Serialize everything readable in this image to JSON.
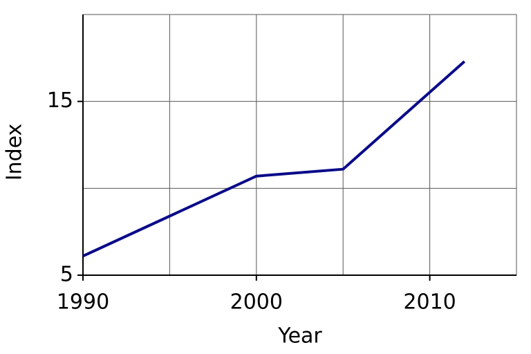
{
  "chart_data": {
    "type": "line",
    "x_label": "Year",
    "y_label": "Index",
    "x": [
      1990,
      2000,
      2005,
      2012
    ],
    "series": [
      {
        "name": "Index",
        "color": "#0a0a8a",
        "values": [
          6.1,
          10.7,
          11.1,
          17.3
        ]
      }
    ],
    "xlim": [
      1990,
      2015
    ],
    "xticks": [
      1990,
      2000,
      2010
    ],
    "xminor_ticks": [
      1995,
      2005
    ],
    "ylim": [
      5,
      20
    ],
    "yticks": [
      5,
      15
    ],
    "yminor_ticks": [
      10,
      20
    ],
    "grid": true
  }
}
